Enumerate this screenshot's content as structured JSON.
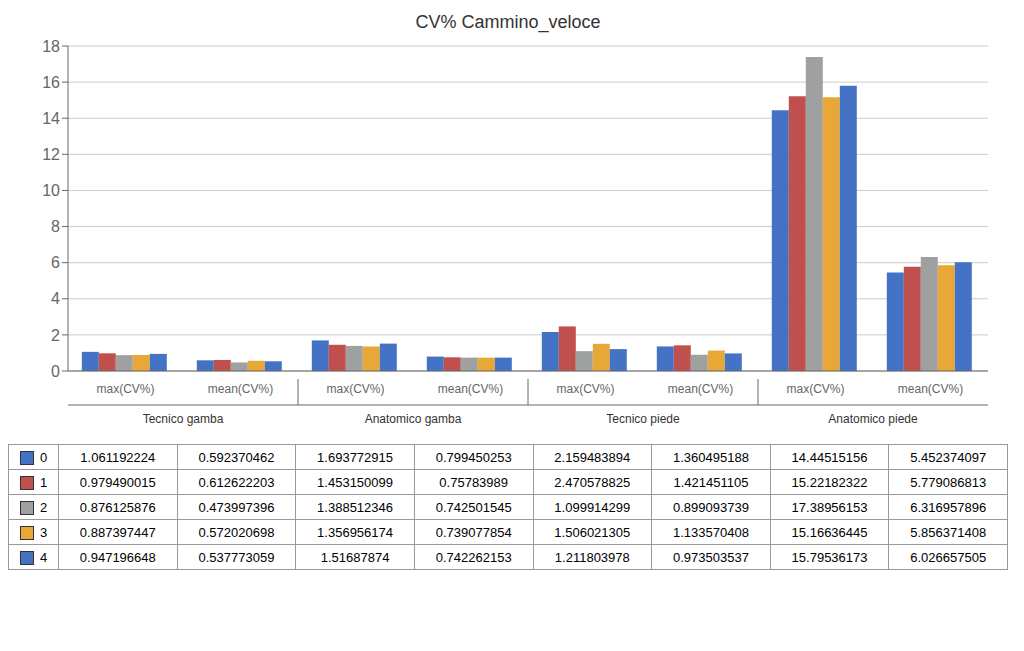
{
  "chart_data": {
    "type": "bar",
    "title": "CV% Cammino_veloce",
    "categories": [
      "max(CV%)",
      "mean(CV%)",
      "max(CV%)",
      "mean(CV%)",
      "max(CV%)",
      "mean(CV%)",
      "max(CV%)",
      "mean(CV%)"
    ],
    "category_groups": [
      "Tecnico gamba",
      "Anatomico gamba",
      "Tecnico piede",
      "Anatomico piede"
    ],
    "series": [
      {
        "name": "0",
        "color": "#4472C4",
        "values": [
          1.061192224,
          0.592370462,
          1.693772915,
          0.799450253,
          2.159483894,
          1.360495188,
          14.44515156,
          5.452374097
        ]
      },
      {
        "name": "1",
        "color": "#C0504D",
        "values": [
          0.979490015,
          0.612622203,
          1.453150099,
          0.75783989,
          2.470578825,
          1.421451105,
          15.22182322,
          5.779086813
        ]
      },
      {
        "name": "2",
        "color": "#9FA0A0",
        "values": [
          0.876125876,
          0.473997396,
          1.388512346,
          0.742501545,
          1.099914299,
          0.899093739,
          17.38956153,
          6.316957896
        ]
      },
      {
        "name": "3",
        "color": "#E8A838",
        "values": [
          0.887397447,
          0.572020698,
          1.356956174,
          0.739077854,
          1.506021305,
          1.133570408,
          15.16636445,
          5.856371408
        ]
      },
      {
        "name": "4",
        "color": "#4472C4",
        "values": [
          0.947196648,
          0.537773059,
          1.51687874,
          0.742262153,
          1.211803978,
          0.973503537,
          15.79536173,
          6.026657505
        ]
      }
    ],
    "ylim": [
      0,
      18
    ],
    "yticks": [
      0,
      2,
      4,
      6,
      8,
      10,
      12,
      14,
      16,
      18
    ],
    "grid": true
  }
}
